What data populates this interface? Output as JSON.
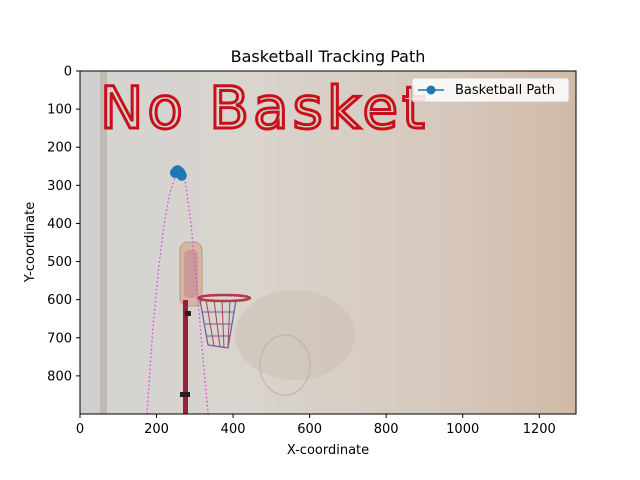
{
  "chart_data": {
    "type": "line",
    "title": "Basketball Tracking Path",
    "xlabel": "X-coordinate",
    "ylabel": "Y-coordinate",
    "xlim": [
      0,
      1296
    ],
    "ylim": [
      900,
      0
    ],
    "y_inverted": true,
    "xticks": [
      "0",
      "200",
      "400",
      "600",
      "800",
      "1000",
      "1200"
    ],
    "yticks": [
      "0",
      "100",
      "200",
      "300",
      "400",
      "500",
      "600",
      "700",
      "800"
    ],
    "xtick_values": [
      0,
      200,
      400,
      600,
      800,
      1000,
      1200
    ],
    "ytick_values": [
      0,
      100,
      200,
      300,
      400,
      500,
      600,
      700,
      800
    ],
    "grid": false,
    "legend": {
      "position": "top-right",
      "entries": [
        "Basketball Path"
      ]
    },
    "annotation": "No Basket",
    "series": [
      {
        "name": "Basketball Path",
        "color": "#1f77b4",
        "marker": "circle",
        "x": [
          248,
          252,
          255,
          258,
          262,
          264,
          266,
          260,
          250
        ],
        "y": [
          267,
          262,
          260,
          262,
          266,
          270,
          275,
          270,
          268
        ]
      }
    ],
    "predicted_trajectory": {
      "color": "#e040e0",
      "style": "dotted",
      "x": [
        175,
        190,
        205,
        220,
        235,
        250,
        262,
        275,
        290,
        305,
        320,
        335
      ],
      "y": [
        900,
        680,
        520,
        400,
        320,
        275,
        268,
        290,
        400,
        560,
        740,
        900
      ]
    },
    "background_photo": {
      "subject": "mini basketball hoop on a pole against a wall",
      "colors": {
        "wall_left": "#d6d5d2",
        "wall_right": "#d4c0b0",
        "pole": "#9a1f3c",
        "backboard": "#d8b7a4",
        "rim": "#b03a48",
        "net": "#6b5b9a"
      }
    }
  }
}
